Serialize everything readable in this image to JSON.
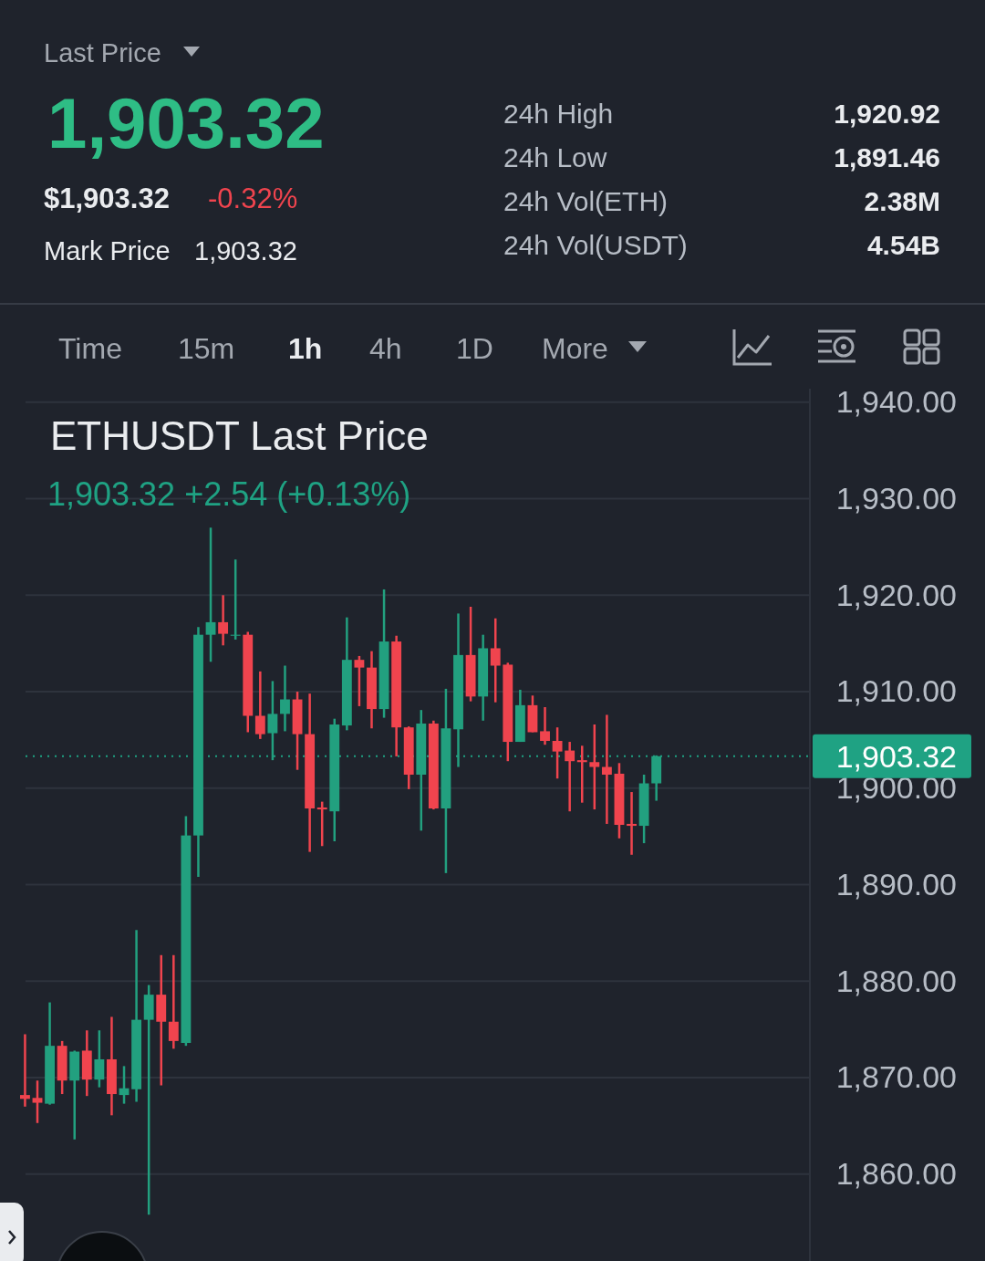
{
  "chart_data": {
    "type": "candlestick",
    "title": "ETHUSDT Last Price",
    "subtitle": "1,903.32  +2.54 (+0.13%)",
    "annotations": [
      "Last Price",
      "1,903.32",
      "$1,903.32",
      "-0.32%",
      "Mark Price",
      "1,903.32",
      "24h High",
      "1,920.92",
      "24h Low",
      "1,891.46",
      "24h Vol(ETH)",
      "2.38M",
      "24h Vol(USDT)",
      "4.54B",
      "Time",
      "15m",
      "1h",
      "4h",
      "1D",
      "More"
    ],
    "categories": [
      null,
      null,
      null,
      null,
      null,
      null,
      null,
      null,
      null,
      null,
      null,
      null,
      null,
      null,
      null,
      null,
      null,
      null,
      null,
      null,
      null,
      null,
      null,
      null,
      null,
      null,
      null,
      null,
      null,
      null,
      null,
      null,
      null,
      null,
      null,
      null,
      null,
      null,
      null,
      null,
      null,
      null,
      null,
      null,
      null,
      null,
      null,
      null,
      null,
      null,
      null,
      null,
      null,
      null,
      null,
      null,
      null,
      null,
      null,
      null,
      null,
      null,
      null,
      null
    ],
    "ohlc": [
      [
        1868.2,
        1874.5,
        1867.0,
        1867.8
      ],
      [
        1867.9,
        1869.7,
        1865.3,
        1867.4
      ],
      [
        1867.3,
        1877.8,
        1867.2,
        1873.3
      ],
      [
        1873.3,
        1873.8,
        1868.3,
        1869.7
      ],
      [
        1869.7,
        1872.8,
        1863.6,
        1872.7
      ],
      [
        1872.8,
        1874.9,
        1868.1,
        1869.8
      ],
      [
        1869.8,
        1874.9,
        1869.0,
        1871.9
      ],
      [
        1871.9,
        1876.3,
        1866.1,
        1868.3
      ],
      [
        1868.2,
        1871.2,
        1867.3,
        1868.9
      ],
      [
        1868.8,
        1885.3,
        1867.5,
        1876.0
      ],
      [
        1876.0,
        1879.6,
        1855.8,
        1878.6
      ],
      [
        1878.6,
        1882.7,
        1869.2,
        1875.8
      ],
      [
        1875.8,
        1882.7,
        1873.0,
        1873.8
      ],
      [
        1873.6,
        1897.1,
        1873.3,
        1895.1
      ],
      [
        1895.1,
        1916.7,
        1890.8,
        1915.9
      ],
      [
        1915.9,
        1927.0,
        1913.1,
        1917.2
      ],
      [
        1917.2,
        1920.0,
        1914.8,
        1916.0
      ],
      [
        1915.8,
        1923.7,
        1915.4,
        1915.9
      ],
      [
        1915.9,
        1916.2,
        1905.8,
        1907.5
      ],
      [
        1907.5,
        1912.1,
        1905.1,
        1905.6
      ],
      [
        1905.7,
        1911.1,
        1902.9,
        1907.7
      ],
      [
        1907.7,
        1912.7,
        1905.9,
        1909.2
      ],
      [
        1909.2,
        1910.0,
        1901.9,
        1905.6
      ],
      [
        1905.6,
        1909.8,
        1893.4,
        1897.9
      ],
      [
        1898.0,
        1898.6,
        1894.0,
        1897.8
      ],
      [
        1897.6,
        1907.2,
        1894.5,
        1906.6
      ],
      [
        1906.5,
        1917.7,
        1906.0,
        1913.3
      ],
      [
        1913.3,
        1913.7,
        1908.5,
        1912.5
      ],
      [
        1912.5,
        1914.2,
        1906.2,
        1908.2
      ],
      [
        1908.2,
        1920.6,
        1907.3,
        1915.2
      ],
      [
        1915.2,
        1915.8,
        1903.3,
        1906.3
      ],
      [
        1906.3,
        1906.4,
        1899.9,
        1901.4
      ],
      [
        1901.4,
        1908.1,
        1895.6,
        1906.7
      ],
      [
        1906.7,
        1907.0,
        1897.8,
        1897.9
      ],
      [
        1897.9,
        1910.3,
        1891.2,
        1906.2
      ],
      [
        1906.1,
        1918.1,
        1902.2,
        1913.8
      ],
      [
        1913.8,
        1918.8,
        1909.0,
        1909.5
      ],
      [
        1909.5,
        1915.9,
        1907.0,
        1914.5
      ],
      [
        1914.5,
        1917.6,
        1908.9,
        1912.7
      ],
      [
        1912.8,
        1913.0,
        1902.8,
        1904.8
      ],
      [
        1904.8,
        1910.2,
        1904.8,
        1908.6
      ],
      [
        1908.6,
        1909.6,
        1905.8,
        1905.8
      ],
      [
        1905.9,
        1908.4,
        1904.5,
        1904.9
      ],
      [
        1904.9,
        1906.3,
        1901.0,
        1903.8
      ],
      [
        1903.9,
        1904.8,
        1897.6,
        1902.8
      ],
      [
        1902.9,
        1904.4,
        1898.5,
        1902.7
      ],
      [
        1902.7,
        1906.6,
        1897.8,
        1902.2
      ],
      [
        1902.2,
        1907.6,
        1896.3,
        1901.4
      ],
      [
        1901.5,
        1902.6,
        1894.8,
        1896.2
      ],
      [
        1896.3,
        1899.6,
        1893.1,
        1896.1
      ],
      [
        1896.1,
        1901.4,
        1894.3,
        1900.5
      ],
      [
        1900.5,
        1903.4,
        1898.7,
        1903.32
      ],
      null,
      null,
      null,
      null,
      null,
      null,
      null,
      null,
      null,
      null,
      null,
      null
    ],
    "ylim": [
      1851,
      1941.4
    ],
    "yticks": [
      {
        "value": 1940,
        "label": "1,940.00"
      },
      {
        "value": 1930,
        "label": "1,930.00"
      },
      {
        "value": 1920,
        "label": "1,920.00"
      },
      {
        "value": 1910,
        "label": "1,910.00"
      },
      {
        "value": 1900,
        "label": "1,900.00"
      },
      {
        "value": 1890,
        "label": "1,890.00"
      },
      {
        "value": 1880,
        "label": "1,880.00"
      },
      {
        "value": 1870,
        "label": "1,870.00"
      },
      {
        "value": 1860,
        "label": "1,860.00"
      }
    ],
    "grid": "y",
    "ref_lines": [
      {
        "axis": "y",
        "value": 1903.32,
        "label": "1,903.32",
        "color": "#1fa283",
        "line_style": "dotted"
      }
    ]
  }
}
